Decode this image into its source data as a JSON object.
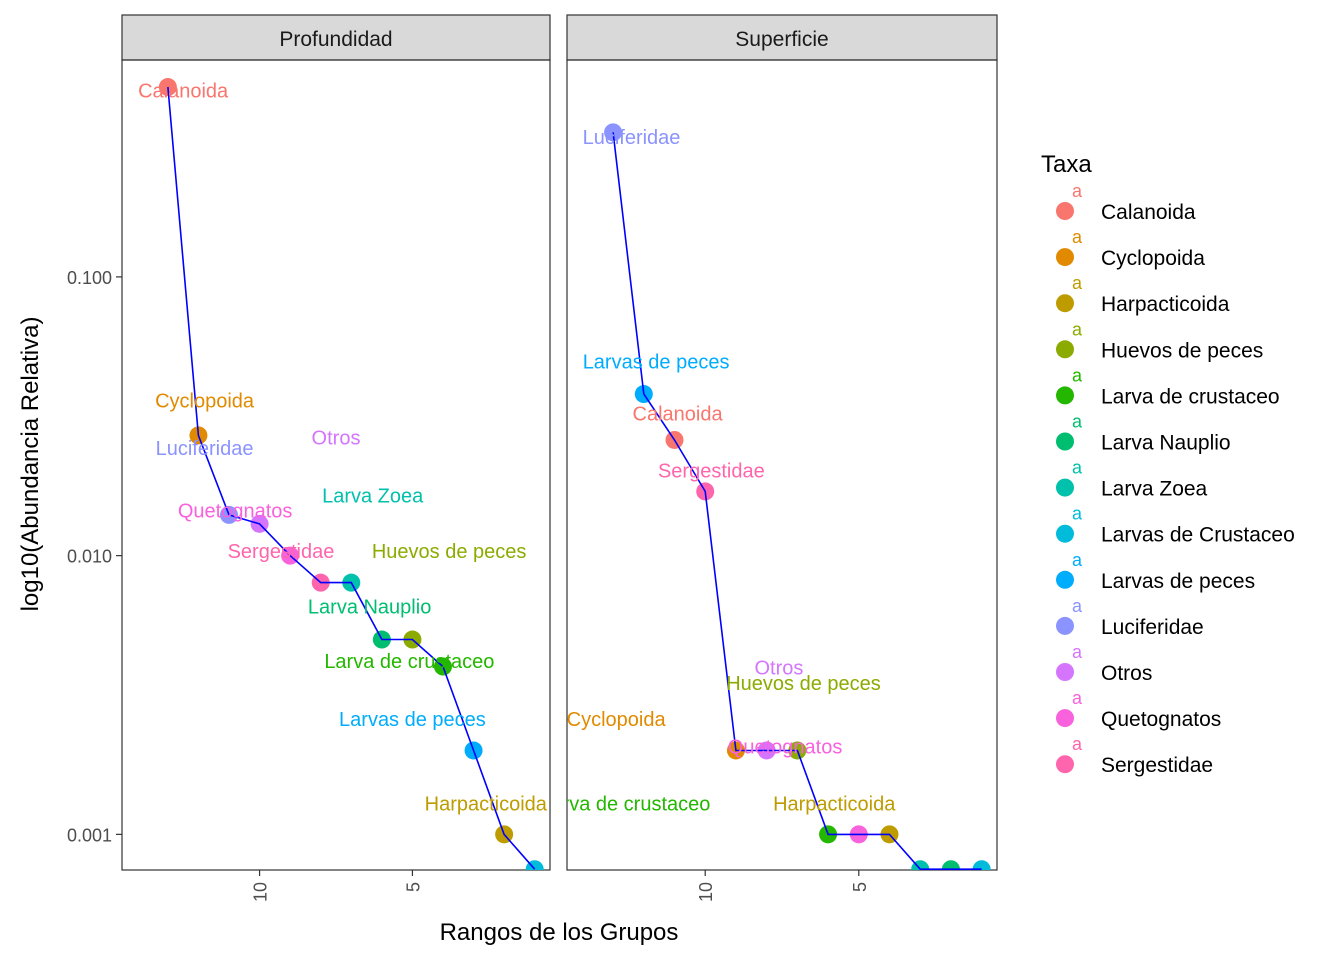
{
  "chart_data": {
    "type": "scatter",
    "ylabel": "log10(Abundancia Relativa)",
    "xlabel": "Rangos de los Grupos",
    "y_scale": "log10",
    "ylim": [
      0.000745,
      0.6
    ],
    "y_ticks": [
      {
        "value": 0.1,
        "label": "0.100"
      },
      {
        "value": 0.01,
        "label": "0.010"
      },
      {
        "value": 0.001,
        "label": "0.001"
      }
    ],
    "x_scale": "reversed",
    "xlim": [
      14.5,
      0.5
    ],
    "x_ticks": [
      {
        "value": 10,
        "label": "10"
      },
      {
        "value": 5,
        "label": "5"
      }
    ],
    "line_color": "#0000ff",
    "legend": {
      "title": "Taxa",
      "key_glyph_text": "a",
      "position": "right",
      "entries": [
        {
          "name": "Calanoida",
          "color": "#F8766D"
        },
        {
          "name": "Cyclopoida",
          "color": "#E18A00"
        },
        {
          "name": "Harpacticoida",
          "color": "#BE9C00"
        },
        {
          "name": "Huevos de peces",
          "color": "#8CAB00"
        },
        {
          "name": "Larva de crustaceo",
          "color": "#24B700"
        },
        {
          "name": "Larva Nauplio",
          "color": "#00BE70"
        },
        {
          "name": "Larva Zoea",
          "color": "#00C1AB"
        },
        {
          "name": "Larvas de Crustaceo",
          "color": "#00BBDA"
        },
        {
          "name": "Larvas de peces",
          "color": "#00ACFC"
        },
        {
          "name": "Luciferidae",
          "color": "#8B93FF"
        },
        {
          "name": "Otros",
          "color": "#D575FE"
        },
        {
          "name": "Quetognatos",
          "color": "#F962DD"
        },
        {
          "name": "Sergestidae",
          "color": "#FF65AC"
        }
      ]
    },
    "panels": [
      {
        "strip": "Profundidad",
        "points": [
          {
            "rank": 13,
            "value": 0.48,
            "taxon": "Calanoida",
            "color": "#F8766D"
          },
          {
            "rank": 12,
            "value": 0.027,
            "taxon": "Cyclopoida",
            "color": "#E18A00"
          },
          {
            "rank": 11,
            "value": 0.014,
            "taxon": "Luciferidae",
            "color": "#8B93FF"
          },
          {
            "rank": 10,
            "value": 0.013,
            "taxon": "Otros",
            "color": "#D575FE"
          },
          {
            "rank": 9,
            "value": 0.01,
            "taxon": "Quetognatos",
            "color": "#F962DD"
          },
          {
            "rank": 8,
            "value": 0.008,
            "taxon": "Sergestidae",
            "color": "#FF65AC"
          },
          {
            "rank": 7,
            "value": 0.008,
            "taxon": "Larva Zoea",
            "color": "#00C1AB"
          },
          {
            "rank": 6,
            "value": 0.005,
            "taxon": "Larva Nauplio",
            "color": "#00BE70"
          },
          {
            "rank": 5,
            "value": 0.005,
            "taxon": "Huevos de peces",
            "color": "#8CAB00"
          },
          {
            "rank": 4,
            "value": 0.004,
            "taxon": "Larva de crustaceo",
            "color": "#24B700"
          },
          {
            "rank": 3,
            "value": 0.002,
            "taxon": "Larvas de peces",
            "color": "#00ACFC"
          },
          {
            "rank": 2,
            "value": 0.001,
            "taxon": "Harpacticoida",
            "color": "#BE9C00"
          },
          {
            "rank": 1,
            "value": 0.00075,
            "taxon": "Larvas de Crustaceo",
            "color": "#00BBDA"
          }
        ],
        "labels": [
          {
            "text": "Calanoida",
            "rank": 12.5,
            "value": 0.44,
            "color": "#F8766D"
          },
          {
            "text": "Cyclopoida",
            "rank": 11.8,
            "value": 0.034,
            "color": "#E18A00"
          },
          {
            "text": "Luciferidae",
            "rank": 11.8,
            "value": 0.023,
            "color": "#8B93FF"
          },
          {
            "text": "Otros",
            "rank": 7.5,
            "value": 0.025,
            "color": "#D575FE"
          },
          {
            "text": "Larva Zoea",
            "rank": 6.3,
            "value": 0.0155,
            "color": "#00C1AB"
          },
          {
            "text": "Quetognatos",
            "rank": 10.8,
            "value": 0.0137,
            "color": "#F962DD"
          },
          {
            "text": "Sergestidae",
            "rank": 9.3,
            "value": 0.0098,
            "color": "#FF65AC"
          },
          {
            "text": "Huevos de peces",
            "rank": 3.8,
            "value": 0.0098,
            "color": "#8CAB00"
          },
          {
            "text": "Larva Nauplio",
            "rank": 6.4,
            "value": 0.0062,
            "color": "#00BE70"
          },
          {
            "text": "Larva de crustaceo",
            "rank": 5.1,
            "value": 0.00395,
            "color": "#24B700"
          },
          {
            "text": "Larvas de peces",
            "rank": 5.0,
            "value": 0.00245,
            "color": "#00ACFC"
          },
          {
            "text": "Harpacticoida",
            "rank": 2.6,
            "value": 0.00122,
            "color": "#BE9C00"
          }
        ]
      },
      {
        "strip": "Superficie",
        "points": [
          {
            "rank": 13,
            "value": 0.33,
            "taxon": "Luciferidae",
            "color": "#8B93FF"
          },
          {
            "rank": 12,
            "value": 0.038,
            "taxon": "Larvas de peces",
            "color": "#00ACFC"
          },
          {
            "rank": 11,
            "value": 0.026,
            "taxon": "Calanoida",
            "color": "#F8766D"
          },
          {
            "rank": 10,
            "value": 0.017,
            "taxon": "Sergestidae",
            "color": "#FF65AC"
          },
          {
            "rank": 9,
            "value": 0.002,
            "taxon": "Cyclopoida",
            "color": "#E18A00"
          },
          {
            "rank": 8,
            "value": 0.002,
            "taxon": "Otros",
            "color": "#D575FE"
          },
          {
            "rank": 7,
            "value": 0.002,
            "taxon": "Huevos de peces",
            "color": "#8CAB00"
          },
          {
            "rank": 6,
            "value": 0.001,
            "taxon": "Larva de crustaceo",
            "color": "#24B700"
          },
          {
            "rank": 5,
            "value": 0.001,
            "taxon": "Quetognatos",
            "color": "#F962DD"
          },
          {
            "rank": 4,
            "value": 0.001,
            "taxon": "Harpacticoida",
            "color": "#BE9C00"
          },
          {
            "rank": 3,
            "value": 0.00075,
            "taxon": "Larva Zoea",
            "color": "#00C1AB"
          },
          {
            "rank": 2,
            "value": 0.00075,
            "taxon": "Larva Nauplio",
            "color": "#00BE70"
          },
          {
            "rank": 1,
            "value": 0.00075,
            "taxon": "Larvas de Crustaceo",
            "color": "#00BBDA"
          }
        ],
        "labels": [
          {
            "text": "Luciferidae",
            "rank": 12.4,
            "value": 0.3,
            "color": "#8B93FF"
          },
          {
            "text": "Larvas de peces",
            "rank": 11.6,
            "value": 0.047,
            "color": "#00ACFC"
          },
          {
            "text": "Calanoida",
            "rank": 10.9,
            "value": 0.0305,
            "color": "#F8766D"
          },
          {
            "text": "Sergestidae",
            "rank": 9.8,
            "value": 0.0191,
            "color": "#FF65AC"
          },
          {
            "text": "Otros",
            "rank": 7.6,
            "value": 0.00375,
            "color": "#D575FE"
          },
          {
            "text": "Huevos de peces",
            "rank": 6.8,
            "value": 0.0033,
            "color": "#8CAB00"
          },
          {
            "text": "Cyclopoida",
            "rank": 12.9,
            "value": 0.00245,
            "color": "#E18A00"
          },
          {
            "text": "Quetognatos",
            "rank": 7.4,
            "value": 0.00195,
            "color": "#F962DD"
          },
          {
            "text": "Larva de crustaceo",
            "rank": 12.6,
            "value": 0.00122,
            "color": "#24B700"
          },
          {
            "text": "Harpacticoida",
            "rank": 5.8,
            "value": 0.00122,
            "color": "#BE9C00"
          }
        ]
      }
    ]
  }
}
